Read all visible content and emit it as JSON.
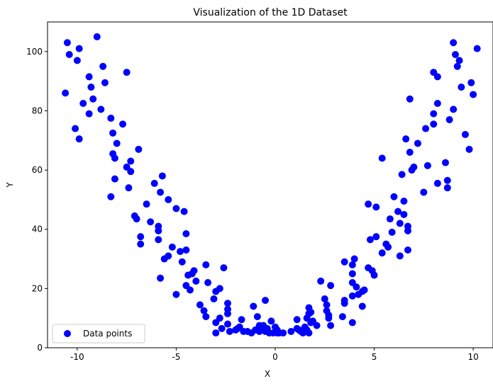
{
  "chart_data": {
    "type": "scatter",
    "title": "Visualization of the 1D Dataset",
    "xlabel": "X",
    "ylabel": "Y",
    "xlim": [
      -11.5,
      11.0
    ],
    "ylim": [
      0,
      110
    ],
    "xticks": [
      -10,
      -5,
      0,
      5,
      10
    ],
    "yticks": [
      0,
      20,
      40,
      60,
      80,
      100
    ],
    "grid": false,
    "legend": "bottom-left",
    "series": [
      {
        "name": "Data points",
        "color": "#0000ff",
        "points": [
          [
            -10.5,
            103
          ],
          [
            -10.6,
            86
          ],
          [
            -10.4,
            99
          ],
          [
            -10.0,
            97
          ],
          [
            -9.9,
            101
          ],
          [
            -9.7,
            82.5
          ],
          [
            -10.1,
            74
          ],
          [
            -9.9,
            70.5
          ],
          [
            -9.4,
            91.5
          ],
          [
            -9.3,
            88
          ],
          [
            -9.2,
            84
          ],
          [
            -9.4,
            79
          ],
          [
            -9.0,
            105
          ],
          [
            -8.7,
            95
          ],
          [
            -8.6,
            89.5
          ],
          [
            -8.8,
            80.5
          ],
          [
            -8.3,
            77.5
          ],
          [
            -8.2,
            72.5
          ],
          [
            -8.0,
            69
          ],
          [
            -8.2,
            65.5
          ],
          [
            -8.1,
            64
          ],
          [
            -8.1,
            57
          ],
          [
            -8.3,
            51
          ],
          [
            -7.5,
            93
          ],
          [
            -7.7,
            75.5
          ],
          [
            -7.3,
            63
          ],
          [
            -7.5,
            61
          ],
          [
            -7.3,
            59.5
          ],
          [
            -7.4,
            54
          ],
          [
            -7.1,
            44.5
          ],
          [
            -7.0,
            43.5
          ],
          [
            -6.9,
            67
          ],
          [
            -6.8,
            37.5
          ],
          [
            -6.8,
            35
          ],
          [
            -6.5,
            48.5
          ],
          [
            -6.3,
            42.5
          ],
          [
            -6.1,
            55.5
          ],
          [
            -5.9,
            41
          ],
          [
            -5.9,
            39.5
          ],
          [
            -5.9,
            36.5
          ],
          [
            -5.8,
            52.5
          ],
          [
            -5.8,
            23.5
          ],
          [
            -5.7,
            58
          ],
          [
            -5.6,
            30
          ],
          [
            -5.4,
            31
          ],
          [
            -5.4,
            50
          ],
          [
            -5.2,
            34
          ],
          [
            -5.0,
            47
          ],
          [
            -5.0,
            18
          ],
          [
            -4.8,
            32.5
          ],
          [
            -4.7,
            29
          ],
          [
            -4.6,
            46
          ],
          [
            -4.5,
            38.5
          ],
          [
            -4.5,
            33
          ],
          [
            -4.5,
            21
          ],
          [
            -4.4,
            24.5
          ],
          [
            -4.3,
            19.5
          ],
          [
            -4.2,
            25
          ],
          [
            -4.1,
            26
          ],
          [
            -4.0,
            22.5
          ],
          [
            -3.8,
            14.5
          ],
          [
            -3.6,
            12.5
          ],
          [
            -3.5,
            10.5
          ],
          [
            -3.5,
            28
          ],
          [
            -3.4,
            22
          ],
          [
            -3.1,
            16.5
          ],
          [
            -3.0,
            19
          ],
          [
            -3.0,
            8.5
          ],
          [
            -3.0,
            5
          ],
          [
            -2.8,
            20
          ],
          [
            -2.8,
            10
          ],
          [
            -2.7,
            6.5
          ],
          [
            -2.6,
            27
          ],
          [
            -2.4,
            15
          ],
          [
            -2.4,
            13
          ],
          [
            -2.4,
            11.5
          ],
          [
            -2.4,
            8
          ],
          [
            -2.3,
            5.5
          ],
          [
            -2.0,
            6
          ],
          [
            -1.9,
            6.5
          ],
          [
            -1.8,
            7
          ],
          [
            -1.7,
            9.5
          ],
          [
            -1.6,
            5.5
          ],
          [
            -1.4,
            5.5
          ],
          [
            -1.2,
            5
          ],
          [
            -1.1,
            14
          ],
          [
            -1.0,
            6
          ],
          [
            -0.9,
            10.5
          ],
          [
            -0.8,
            7.5
          ],
          [
            -0.8,
            5.5
          ],
          [
            -0.7,
            6.5
          ],
          [
            -0.6,
            7.5
          ],
          [
            -0.5,
            16
          ],
          [
            -0.5,
            5.5
          ],
          [
            -0.4,
            6.5
          ],
          [
            -0.3,
            5
          ],
          [
            -0.2,
            9
          ],
          [
            -0.1,
            5
          ],
          [
            0.0,
            7
          ],
          [
            0.1,
            6
          ],
          [
            0.1,
            5
          ],
          [
            0.2,
            5
          ],
          [
            0.4,
            5
          ],
          [
            0.8,
            5.5
          ],
          [
            1.1,
            9.5
          ],
          [
            1.1,
            6.5
          ],
          [
            1.2,
            6
          ],
          [
            1.3,
            5.5
          ],
          [
            1.4,
            5
          ],
          [
            1.5,
            7
          ],
          [
            1.6,
            6
          ],
          [
            1.6,
            10
          ],
          [
            1.7,
            5
          ],
          [
            1.7,
            11.5
          ],
          [
            1.7,
            13.5
          ],
          [
            1.8,
            12
          ],
          [
            1.8,
            8.5
          ],
          [
            1.9,
            9
          ],
          [
            2.1,
            7.5
          ],
          [
            2.3,
            22.5
          ],
          [
            2.5,
            16.5
          ],
          [
            2.6,
            14.5
          ],
          [
            2.6,
            12.5
          ],
          [
            2.7,
            11
          ],
          [
            2.7,
            10
          ],
          [
            2.8,
            21
          ],
          [
            2.8,
            7.5
          ],
          [
            3.4,
            10.5
          ],
          [
            3.5,
            29
          ],
          [
            3.5,
            16
          ],
          [
            3.5,
            15
          ],
          [
            3.9,
            28
          ],
          [
            3.9,
            25
          ],
          [
            3.9,
            22
          ],
          [
            3.9,
            17.5
          ],
          [
            3.9,
            8.5
          ],
          [
            4.0,
            30
          ],
          [
            4.1,
            20.5
          ],
          [
            4.2,
            18
          ],
          [
            4.4,
            19
          ],
          [
            4.4,
            14
          ],
          [
            4.5,
            19.5
          ],
          [
            4.7,
            48.5
          ],
          [
            4.7,
            27
          ],
          [
            4.8,
            36.5
          ],
          [
            4.9,
            26
          ],
          [
            5.0,
            24.5
          ],
          [
            5.1,
            47.5
          ],
          [
            5.1,
            37.5
          ],
          [
            5.4,
            64
          ],
          [
            5.4,
            32
          ],
          [
            5.6,
            35
          ],
          [
            5.7,
            34
          ],
          [
            5.8,
            43.5
          ],
          [
            5.9,
            39
          ],
          [
            6.0,
            51
          ],
          [
            6.2,
            46
          ],
          [
            6.3,
            42
          ],
          [
            6.3,
            31
          ],
          [
            6.4,
            58.5
          ],
          [
            6.5,
            45
          ],
          [
            6.5,
            49.5
          ],
          [
            6.6,
            70.5
          ],
          [
            6.7,
            41
          ],
          [
            6.7,
            39.5
          ],
          [
            6.7,
            33
          ],
          [
            6.8,
            84
          ],
          [
            6.8,
            66
          ],
          [
            6.9,
            60
          ],
          [
            7.0,
            61
          ],
          [
            7.2,
            69
          ],
          [
            7.5,
            52.5
          ],
          [
            7.6,
            74
          ],
          [
            7.7,
            61.5
          ],
          [
            8.0,
            79
          ],
          [
            8.0,
            75.5
          ],
          [
            8.0,
            93
          ],
          [
            8.2,
            91.5
          ],
          [
            8.2,
            82.5
          ],
          [
            8.2,
            55.5
          ],
          [
            8.6,
            62.5
          ],
          [
            8.7,
            56.5
          ],
          [
            8.7,
            54
          ],
          [
            8.8,
            77
          ],
          [
            9.0,
            103
          ],
          [
            9.0,
            80.5
          ],
          [
            9.1,
            99
          ],
          [
            9.2,
            95
          ],
          [
            9.3,
            97
          ],
          [
            9.4,
            88
          ],
          [
            9.6,
            72
          ],
          [
            9.8,
            67
          ],
          [
            9.9,
            89.5
          ],
          [
            10.0,
            85.5
          ],
          [
            10.2,
            101
          ]
        ]
      }
    ]
  }
}
